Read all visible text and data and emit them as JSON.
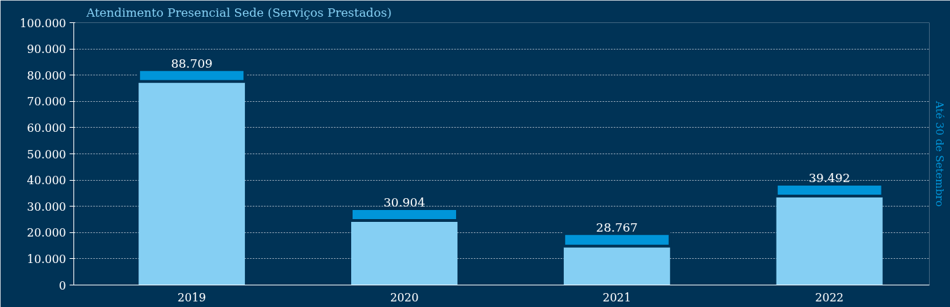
{
  "chart_data": {
    "type": "bar",
    "title": "Atendimento Presencial Sede (Serviços Prestados)",
    "categories": [
      "2019",
      "2020",
      "2021",
      "2022"
    ],
    "stacked": true,
    "series": [
      {
        "color": "#85cff3",
        "values": [
          77600,
          24600,
          14800,
          33900
        ]
      },
      {
        "color": "#0095d9",
        "values": [
          4500,
          4500,
          4800,
          4500
        ]
      }
    ],
    "ylim": [
      0,
      100000
    ],
    "yticks": [
      0,
      {
        "value": 10000,
        "label": "10.000"
      },
      {
        "value": 20000,
        "label": "20.000"
      },
      {
        "value": 30000,
        "label": "30.000"
      },
      {
        "value": 40000,
        "label": "40.000"
      },
      {
        "value": 50000,
        "label": "50.000"
      },
      {
        "value": 60000,
        "label": "60.000"
      },
      {
        "value": 70000,
        "label": "70.000"
      },
      {
        "value": 80000,
        "label": "80.000"
      },
      {
        "value": 90000,
        "label": "90.000"
      },
      {
        "value": 100000,
        "label": "100.000"
      }
    ],
    "grid": "y",
    "annotations": [
      {
        "text": "88.709",
        "x": "2019",
        "y": 82100
      },
      {
        "text": "30.904",
        "x": "2020",
        "y": 29100
      },
      {
        "text": "28.767",
        "x": "2021",
        "y": 19600
      },
      {
        "text": "39.492",
        "x": "2022",
        "y": 38400
      },
      "Até 30 de Setembro"
    ]
  }
}
